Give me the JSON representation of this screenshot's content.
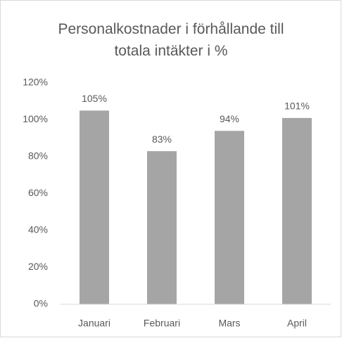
{
  "chart_data": {
    "type": "bar",
    "title": "Personalkostnader i förhållande till totala intäkter i %",
    "categories": [
      "Januari",
      "Februari",
      "Mars",
      "April"
    ],
    "values": [
      105,
      83,
      94,
      101
    ],
    "value_labels": [
      "105%",
      "83%",
      "94%",
      "101%"
    ],
    "color": "#a5a5a5",
    "ylim": [
      0,
      120
    ],
    "yticks": [
      {
        "value": 0,
        "label": "0%"
      },
      {
        "value": 20,
        "label": "20%"
      },
      {
        "value": 40,
        "label": "40%"
      },
      {
        "value": 60,
        "label": "60%"
      },
      {
        "value": 80,
        "label": "80%"
      },
      {
        "value": 100,
        "label": "100%"
      },
      {
        "value": 120,
        "label": "120%"
      }
    ],
    "grid": false
  }
}
